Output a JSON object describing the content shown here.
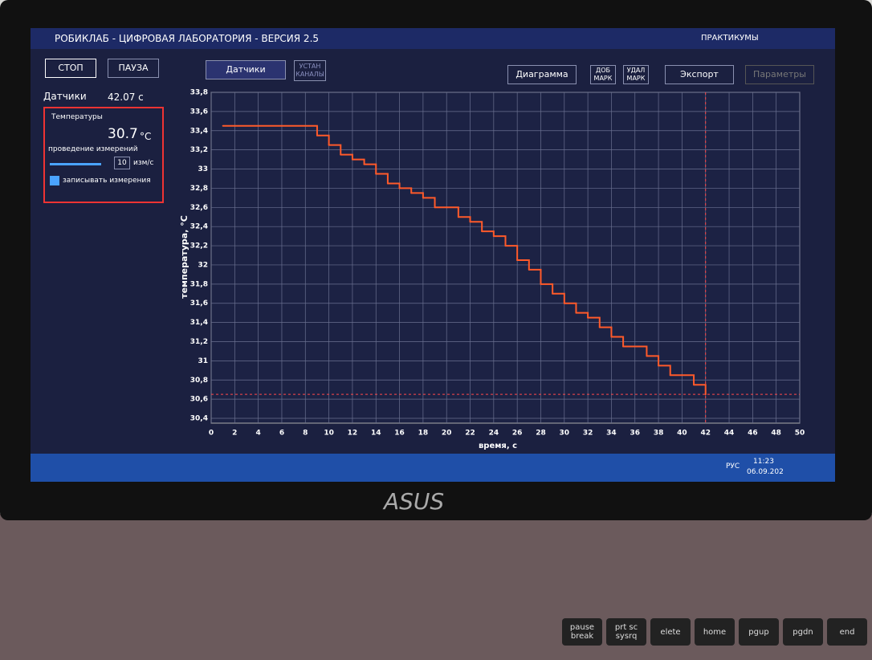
{
  "window": {
    "title": "РОБИКЛАБ - ЦИФРОВАЯ ЛАБОРАТОРИЯ - ВЕРСИЯ 2.5",
    "menu": "ПРАКТИКУМЫ"
  },
  "toolbar": {
    "stop": "СТОП",
    "pause": "ПАУЗА",
    "sensors": "Датчики",
    "set_channels": "УСТАН КАНАЛЫ",
    "diagram": "Диаграмма",
    "add_mark": "ДОБ МАРК",
    "del_mark": "УДАЛ МАРК",
    "export": "Экспорт",
    "params": "Параметры"
  },
  "sidebar": {
    "label": "Датчики",
    "time": "42.07 с",
    "panel_title": "Температуры",
    "reading": "30.7",
    "unit": "°C",
    "measuring": "проведение измерений",
    "rate": "10",
    "rate_unit": "изм/с",
    "record": "записывать измерения"
  },
  "taskbar": {
    "lang": "РУС",
    "time": "11:23",
    "date": "06.09.202"
  },
  "keyboard": [
    "pause break",
    "prt sc sysrq",
    "elete",
    "home",
    "pgup",
    "pgdn",
    "end"
  ],
  "chart_data": {
    "type": "line",
    "x_label": "время, с",
    "y_label": "температура, °C",
    "color": "#ff5a2a",
    "x": [
      1,
      9,
      10,
      11,
      12,
      13,
      14,
      15,
      16,
      17,
      18,
      19,
      20,
      21,
      22,
      23,
      24,
      25,
      26,
      27,
      28,
      29,
      30,
      31,
      32,
      33,
      34,
      35,
      36,
      37,
      38,
      39,
      40,
      41,
      42
    ],
    "values": [
      33.45,
      33.35,
      33.25,
      33.15,
      33.1,
      33.05,
      32.95,
      32.85,
      32.8,
      32.75,
      32.7,
      32.6,
      32.6,
      32.5,
      32.45,
      32.35,
      32.3,
      32.2,
      32.05,
      31.95,
      31.8,
      31.7,
      31.6,
      31.5,
      31.45,
      31.35,
      31.25,
      31.15,
      31.15,
      31.05,
      30.95,
      30.85,
      30.85,
      30.75,
      30.65
    ],
    "cursor_x": 42,
    "cursor_y": 30.65,
    "xlim": [
      0,
      50
    ],
    "xticks": [
      0,
      2,
      4,
      6,
      8,
      10,
      12,
      14,
      16,
      18,
      20,
      22,
      24,
      26,
      28,
      30,
      32,
      34,
      36,
      38,
      40,
      42,
      44,
      46,
      48,
      50
    ],
    "ylim": [
      30.35,
      33.8
    ],
    "yticks": [
      {
        "value": 30.4,
        "label": "30,4"
      },
      {
        "value": 30.6,
        "label": "30,6"
      },
      {
        "value": 30.8,
        "label": "30,8"
      },
      31,
      {
        "value": 31.2,
        "label": "31,2"
      },
      {
        "value": 31.4,
        "label": "31,4"
      },
      {
        "value": 31.6,
        "label": "31,6"
      },
      {
        "value": 31.8,
        "label": "31,8"
      },
      32,
      {
        "value": 32.2,
        "label": "32,2"
      },
      {
        "value": 32.4,
        "label": "32,4"
      },
      {
        "value": 32.6,
        "label": "32,6"
      },
      {
        "value": 32.8,
        "label": "32,8"
      },
      33,
      {
        "value": 33.2,
        "label": "33,2"
      },
      {
        "value": 33.4,
        "label": "33,4"
      },
      {
        "value": 33.6,
        "label": "33,6"
      },
      {
        "value": 33.8,
        "label": "33,8"
      }
    ],
    "grid": true
  }
}
